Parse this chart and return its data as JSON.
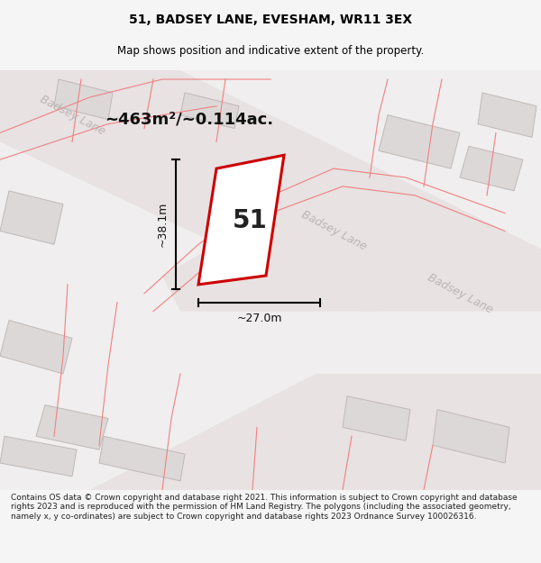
{
  "title": "51, BADSEY LANE, EVESHAM, WR11 3EX",
  "subtitle": "Map shows position and indicative extent of the property.",
  "area_label": "~463m²/~0.114ac.",
  "plot_number": "51",
  "width_label": "~27.0m",
  "height_label": "~38.1m",
  "footer": "Contains OS data © Crown copyright and database right 2021. This information is subject to Crown copyright and database rights 2023 and is reproduced with the permission of HM Land Registry. The polygons (including the associated geometry, namely x, y co-ordinates) are subject to Crown copyright and database rights 2023 Ordnance Survey 100026316.",
  "bg_color": "#f5f5f5",
  "map_bg": "#f0eeee",
  "plot_fill": "#ffffff",
  "plot_edge": "#cc0000",
  "title_color": "#000000",
  "footer_color": "#222222",
  "road_label_color": "#b8b0b0",
  "building_fill": "#ddd8d8",
  "building_edge": "#c0b8b8",
  "pink_line_color": "#f08080"
}
